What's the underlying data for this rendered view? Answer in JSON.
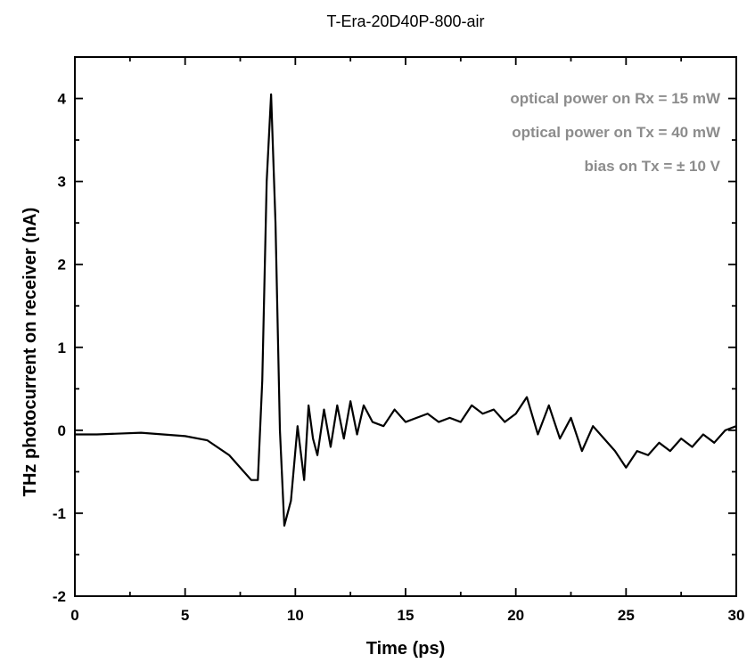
{
  "chart_data": {
    "type": "line",
    "title": "T-Era-20D40P-800-air",
    "xlabel": "Time (ps)",
    "ylabel": "THz photocurrent on receiver (nA)",
    "xlim": [
      0,
      30
    ],
    "ylim": [
      -2,
      4.5
    ],
    "x_ticks": [
      "0",
      "5",
      "10",
      "15",
      "20",
      "25",
      "30"
    ],
    "y_ticks": [
      "-2",
      "-1",
      "0",
      "1",
      "2",
      "3",
      "4"
    ],
    "grid": false,
    "annotations": [
      "optical power on Rx = 15 mW",
      "optical power on Tx = 40 mW",
      "bias on Tx = ± 10 V"
    ],
    "series": [
      {
        "color": "#000000",
        "x": [
          0,
          1,
          2,
          3,
          4,
          5,
          6,
          7,
          7.5,
          8,
          8.3,
          8.5,
          8.7,
          8.9,
          9.1,
          9.3,
          9.5,
          9.8,
          10.1,
          10.4,
          10.6,
          10.8,
          11.0,
          11.3,
          11.6,
          11.9,
          12.2,
          12.5,
          12.8,
          13.1,
          13.5,
          14.0,
          14.5,
          15.0,
          15.5,
          16.0,
          16.5,
          17.0,
          17.5,
          18.0,
          18.5,
          19.0,
          19.5,
          20.0,
          20.5,
          21.0,
          21.5,
          22.0,
          22.5,
          23.0,
          23.5,
          24.0,
          24.5,
          25.0,
          25.5,
          26.0,
          26.5,
          27.0,
          27.5,
          28.0,
          28.5,
          29.0,
          29.5,
          30.0
        ],
        "y": [
          -0.05,
          -0.05,
          -0.04,
          -0.03,
          -0.05,
          -0.07,
          -0.12,
          -0.3,
          -0.45,
          -0.6,
          -0.6,
          0.6,
          3.0,
          4.05,
          2.5,
          0.0,
          -1.15,
          -0.85,
          0.05,
          -0.6,
          0.3,
          -0.1,
          -0.3,
          0.25,
          -0.2,
          0.3,
          -0.1,
          0.35,
          -0.05,
          0.3,
          0.1,
          0.05,
          0.25,
          0.1,
          0.15,
          0.2,
          0.1,
          0.15,
          0.1,
          0.3,
          0.2,
          0.25,
          0.1,
          0.2,
          0.4,
          -0.05,
          0.3,
          -0.1,
          0.15,
          -0.25,
          0.05,
          -0.1,
          -0.25,
          -0.45,
          -0.25,
          -0.3,
          -0.15,
          -0.25,
          -0.1,
          -0.2,
          -0.05,
          -0.15,
          0.0,
          0.05
        ]
      }
    ]
  }
}
